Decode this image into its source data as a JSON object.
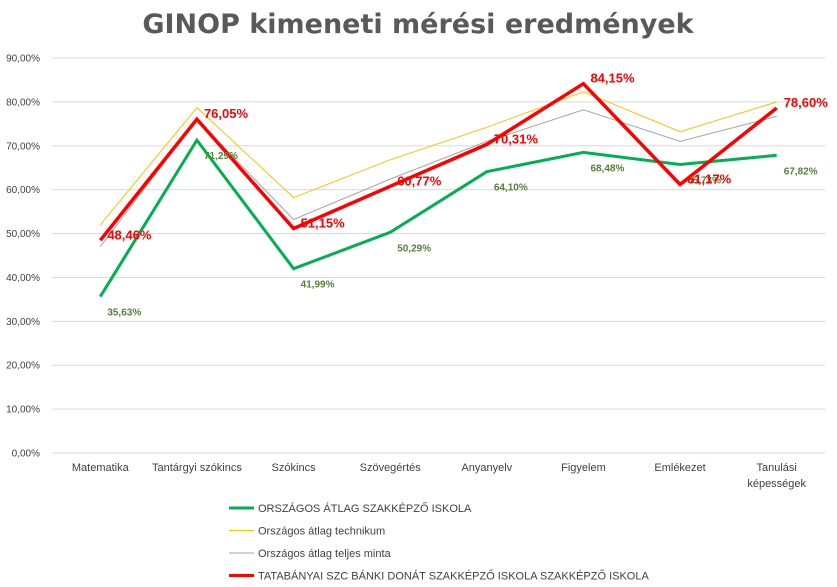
{
  "chart_data": {
    "type": "line",
    "title": "GINOP kimeneti mérési eredmények",
    "categories": [
      [
        "Matematika"
      ],
      [
        "Tantárgyi szókincs"
      ],
      [
        "Szókincs"
      ],
      [
        "Szövegértés"
      ],
      [
        "Anyanyelv"
      ],
      [
        "Figyelem"
      ],
      [
        "Emlékezet"
      ],
      [
        "Tanulási",
        "képességek"
      ]
    ],
    "ylim": [
      0,
      90
    ],
    "yticks": [
      "0,00%",
      "10,00%",
      "20,00%",
      "30,00%",
      "40,00%",
      "50,00%",
      "60,00%",
      "70,00%",
      "80,00%",
      "90,00%"
    ],
    "grid": true,
    "legend_position": "bottom-left",
    "series": [
      {
        "name": "ORSZÁGOS ÁTLAG SZAKKÉPZŐ ISKOLA",
        "values": [
          35.63,
          71.29,
          41.99,
          50.29,
          64.1,
          68.48,
          65.73,
          67.82
        ],
        "labels": [
          "35,63%",
          "71,29%",
          "41,99%",
          "50,29%",
          "64,10%",
          "68,48%",
          "65,73%",
          "67,82%"
        ],
        "color": "#00b050",
        "line_width": 3,
        "label_style": "green"
      },
      {
        "name": "Országos átlag technikum",
        "values": [
          52.0,
          78.7,
          58.2,
          66.8,
          74.2,
          82.3,
          73.2,
          80.0
        ],
        "color": "#ffc000",
        "line_width": 1
      },
      {
        "name": "Országos átlag teljes minta",
        "values": [
          47.0,
          76.0,
          53.2,
          62.4,
          71.0,
          78.2,
          71.0,
          76.7
        ],
        "color": "#a6a6a6",
        "line_width": 1
      },
      {
        "name": "TATABÁNYAI SZC BÁNKI DONÁT SZAKKÉPZŐ ISKOLA SZAKKÉPZŐ ISKOLA",
        "values": [
          48.46,
          76.05,
          51.15,
          60.77,
          70.31,
          84.15,
          61.17,
          78.6
        ],
        "labels": [
          "48,46%",
          "76,05%",
          "51,15%",
          "60,77%",
          "70,31%",
          "84,15%",
          "61,17%",
          "78,60%"
        ],
        "color": "#ff0000",
        "line_width": 3.5,
        "label_style": "red"
      }
    ]
  }
}
